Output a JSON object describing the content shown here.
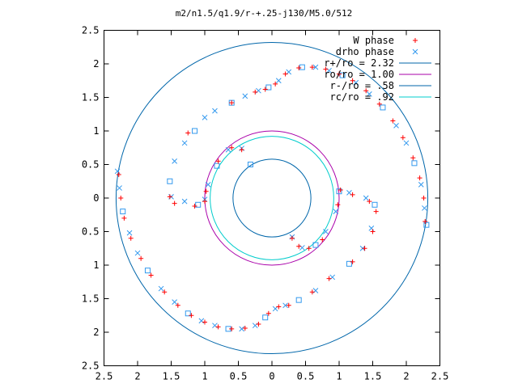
{
  "chart_data": {
    "type": "scatter",
    "title": "m2/n1.5/q1.9/r-+.25-j130/M5.0/512",
    "xlabel": "",
    "ylabel": "",
    "xlim": [
      -2.5,
      2.5
    ],
    "ylim": [
      -2.5,
      2.5
    ],
    "x_ticks": [
      -2.5,
      -2,
      -1.5,
      -1,
      -0.5,
      0,
      0.5,
      1,
      1.5,
      2,
      2.5
    ],
    "y_ticks": [
      -2.5,
      -2,
      -1.5,
      -1,
      -0.5,
      0,
      0.5,
      1,
      1.5,
      2,
      2.5
    ],
    "x_tick_labels": [
      "2.5",
      "2",
      "1.5",
      "1",
      "0.5",
      "0",
      "0.5",
      "1",
      "1.5",
      "2",
      "2.5"
    ],
    "y_tick_labels": [
      "2.5",
      "2",
      "1.5",
      "1",
      "0.5",
      "0",
      "0.5",
      "1",
      "1.5",
      "2",
      "2.5"
    ],
    "grid": false,
    "legend_position": "top-right",
    "aspect": "equal",
    "colors": {
      "w_phase": "#ff0000",
      "drho_phase": "#3399ee",
      "r_plus": "#0066aa",
      "ro": "#aa00aa",
      "r_minus": "#0066aa",
      "rc": "#00cccc"
    },
    "series": [
      {
        "name": "W phase",
        "kind": "points",
        "marker": "+",
        "color": "#ff0000",
        "points": [
          [
            -2.28,
            0.35
          ],
          [
            -2.25,
            0.0
          ],
          [
            -2.2,
            -0.3
          ],
          [
            -2.1,
            -0.6
          ],
          [
            -1.95,
            -0.9
          ],
          [
            -1.8,
            -1.15
          ],
          [
            -1.6,
            -1.4
          ],
          [
            -1.4,
            -1.6
          ],
          [
            -1.2,
            -1.75
          ],
          [
            -1.0,
            -1.85
          ],
          [
            -0.8,
            -1.92
          ],
          [
            -0.6,
            -1.95
          ],
          [
            -0.4,
            -1.94
          ],
          [
            -0.2,
            -1.88
          ],
          [
            -0.05,
            -1.72
          ],
          [
            0.1,
            -1.62
          ],
          [
            0.25,
            -1.6
          ],
          [
            0.6,
            -1.4
          ],
          [
            0.85,
            -1.2
          ],
          [
            1.2,
            -0.95
          ],
          [
            1.38,
            -0.75
          ],
          [
            1.5,
            -0.5
          ],
          [
            1.55,
            -0.2
          ],
          [
            1.45,
            -0.05
          ],
          [
            1.2,
            0.05
          ],
          [
            1.02,
            0.12
          ],
          [
            0.98,
            -0.1
          ],
          [
            0.75,
            -0.62
          ],
          [
            0.55,
            -0.75
          ],
          [
            0.4,
            -0.72
          ],
          [
            0.3,
            -0.6
          ],
          [
            2.28,
            -0.35
          ],
          [
            2.26,
            0.0
          ],
          [
            2.2,
            0.3
          ],
          [
            2.1,
            0.6
          ],
          [
            1.95,
            0.9
          ],
          [
            1.8,
            1.15
          ],
          [
            1.6,
            1.4
          ],
          [
            1.4,
            1.6
          ],
          [
            1.2,
            1.75
          ],
          [
            1.0,
            1.85
          ],
          [
            0.8,
            1.92
          ],
          [
            0.6,
            1.95
          ],
          [
            0.4,
            1.94
          ],
          [
            0.2,
            1.85
          ],
          [
            0.05,
            1.7
          ],
          [
            -0.1,
            1.62
          ],
          [
            -0.25,
            1.58
          ],
          [
            -0.6,
            1.42
          ],
          [
            -1.25,
            0.97
          ],
          [
            -1.52,
            0.02
          ],
          [
            -1.45,
            -0.08
          ],
          [
            -1.15,
            -0.12
          ],
          [
            -1.0,
            -0.05
          ],
          [
            -0.98,
            0.1
          ],
          [
            -0.8,
            0.55
          ],
          [
            -0.6,
            0.75
          ],
          [
            -0.45,
            0.72
          ]
        ]
      },
      {
        "name": "drho phase",
        "kind": "points",
        "marker": "x/square",
        "color": "#3399ee",
        "points": [
          [
            -2.3,
            0.4
          ],
          [
            -2.27,
            0.15
          ],
          [
            -2.22,
            -0.2
          ],
          [
            -2.12,
            -0.52
          ],
          [
            -2.0,
            -0.82
          ],
          [
            -1.85,
            -1.08
          ],
          [
            -1.65,
            -1.35
          ],
          [
            -1.45,
            -1.55
          ],
          [
            -1.25,
            -1.72
          ],
          [
            -1.05,
            -1.83
          ],
          [
            -0.85,
            -1.9
          ],
          [
            -0.65,
            -1.95
          ],
          [
            -0.45,
            -1.95
          ],
          [
            -0.25,
            -1.9
          ],
          [
            -0.1,
            -1.78
          ],
          [
            0.05,
            -1.65
          ],
          [
            0.2,
            -1.6
          ],
          [
            0.4,
            -1.52
          ],
          [
            0.65,
            -1.38
          ],
          [
            0.9,
            -1.18
          ],
          [
            1.15,
            -0.98
          ],
          [
            1.35,
            -0.75
          ],
          [
            1.48,
            -0.45
          ],
          [
            1.53,
            -0.1
          ],
          [
            1.4,
            0.0
          ],
          [
            1.15,
            0.08
          ],
          [
            1.0,
            0.1
          ],
          [
            0.95,
            -0.2
          ],
          [
            0.8,
            -0.5
          ],
          [
            0.65,
            -0.7
          ],
          [
            0.45,
            -0.74
          ],
          [
            0.3,
            -0.58
          ],
          [
            2.3,
            -0.4
          ],
          [
            2.27,
            -0.15
          ],
          [
            2.22,
            0.2
          ],
          [
            2.12,
            0.52
          ],
          [
            2.0,
            0.82
          ],
          [
            1.85,
            1.08
          ],
          [
            1.65,
            1.35
          ],
          [
            1.45,
            1.55
          ],
          [
            1.25,
            1.72
          ],
          [
            1.05,
            1.83
          ],
          [
            0.85,
            1.9
          ],
          [
            0.65,
            1.95
          ],
          [
            0.45,
            1.95
          ],
          [
            0.25,
            1.88
          ],
          [
            0.1,
            1.75
          ],
          [
            -0.05,
            1.65
          ],
          [
            -0.2,
            1.6
          ],
          [
            -0.4,
            1.52
          ],
          [
            -0.6,
            1.42
          ],
          [
            -0.85,
            1.3
          ],
          [
            -1.0,
            1.2
          ],
          [
            -1.15,
            1.0
          ],
          [
            -1.3,
            0.82
          ],
          [
            -1.45,
            0.55
          ],
          [
            -1.52,
            0.25
          ],
          [
            -1.5,
            0.02
          ],
          [
            -1.3,
            -0.05
          ],
          [
            -1.1,
            -0.1
          ],
          [
            -1.0,
            -0.02
          ],
          [
            -0.95,
            0.2
          ],
          [
            -0.82,
            0.48
          ],
          [
            -0.65,
            0.72
          ],
          [
            -0.45,
            0.74
          ],
          [
            -0.32,
            0.5
          ]
        ]
      },
      {
        "name": "r+/ro = 2.32",
        "kind": "circle",
        "radius": 2.32,
        "color": "#0066aa"
      },
      {
        "name": "ro/ro = 1.00",
        "kind": "circle",
        "radius": 1.0,
        "color": "#aa00aa"
      },
      {
        "name": "r-/ro = .58",
        "kind": "circle",
        "radius": 0.58,
        "color": "#0066aa"
      },
      {
        "name": "rc/ro = .92",
        "kind": "circle",
        "radius": 0.92,
        "color": "#00cccc"
      }
    ]
  }
}
